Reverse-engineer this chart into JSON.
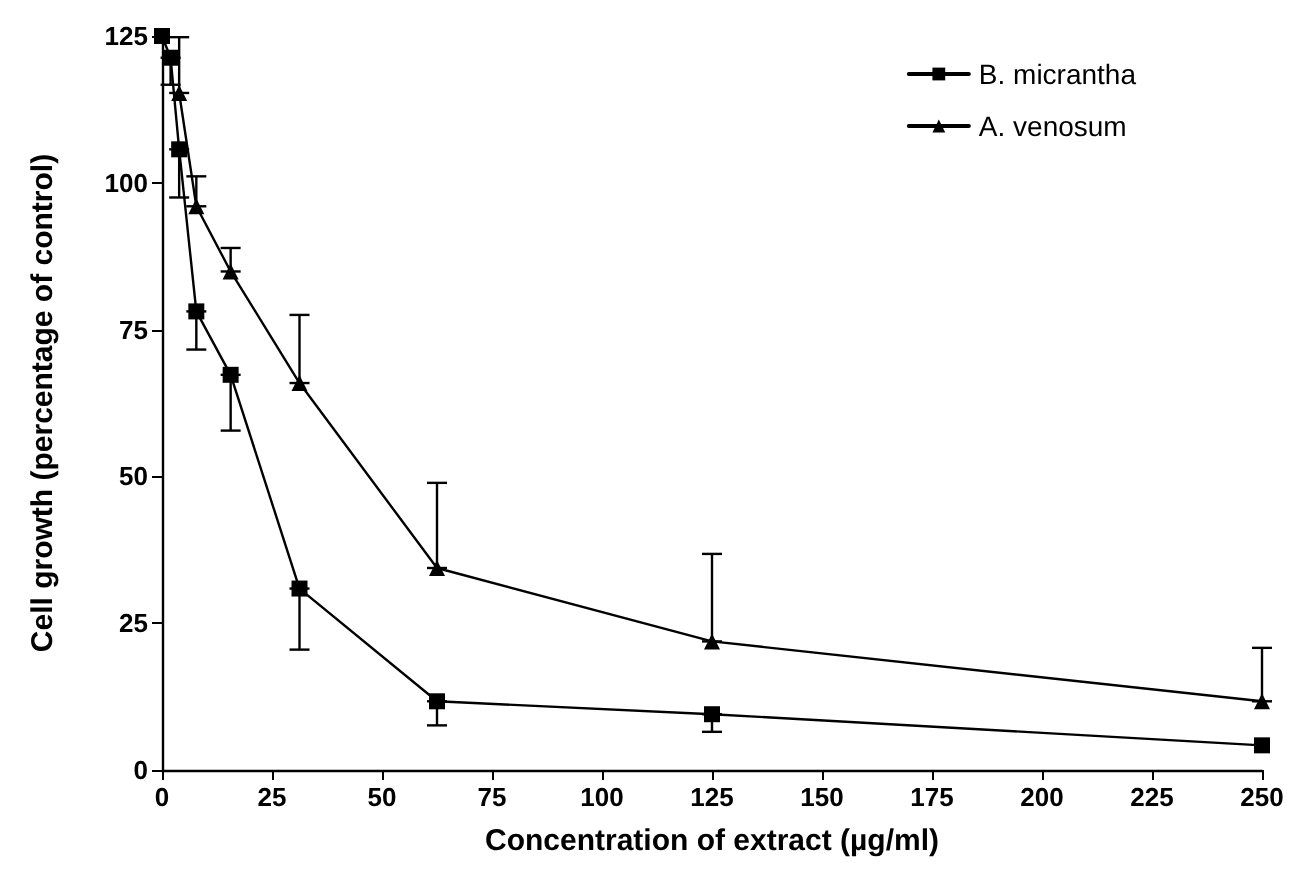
{
  "chart_data": {
    "type": "line",
    "xlabel": "Concentration of extract (µg/ml)",
    "ylabel": "Cell growth (percentage of control)",
    "x": [
      0,
      1.95,
      3.9,
      7.8,
      15.6,
      31.25,
      62.5,
      125,
      250
    ],
    "series": [
      {
        "name": "B. micrantha",
        "color": "#000000",
        "marker": "square",
        "values": [
          125,
          121.3,
          105.7,
          78.1,
          67.3,
          30.9,
          11.7,
          9.5,
          4.2
        ],
        "errors": [
          null,
          [
            116.7,
            121.3
          ],
          [
            97.5,
            105.7
          ],
          [
            71.6,
            78.1
          ],
          [
            57.8,
            67.3
          ],
          [
            20.5,
            30.9
          ],
          [
            7.6,
            11.7
          ],
          [
            6.5,
            9.5
          ],
          null
        ]
      },
      {
        "name": "A. venosum",
        "color": "#000000",
        "marker": "triangle",
        "values": [
          null,
          null,
          115.3,
          96.0,
          84.9,
          65.9,
          34.4,
          21.9,
          11.7
        ],
        "errors": [
          null,
          null,
          [
            115.3,
            124.8
          ],
          [
            96.0,
            101.1
          ],
          [
            84.9,
            88.9
          ],
          [
            65.9,
            77.5
          ],
          [
            34.4,
            48.9
          ],
          [
            21.9,
            36.8
          ],
          [
            11.7,
            20.8
          ]
        ]
      }
    ],
    "xlim": [
      0,
      250
    ],
    "xticks": [
      0,
      25,
      50,
      75,
      100,
      125,
      150,
      175,
      200,
      225,
      250
    ],
    "ylim": [
      0,
      125
    ],
    "yticks": [
      0,
      25,
      50,
      75,
      100,
      125
    ],
    "grid": false,
    "legend": "top right",
    "line_style": "solid"
  }
}
